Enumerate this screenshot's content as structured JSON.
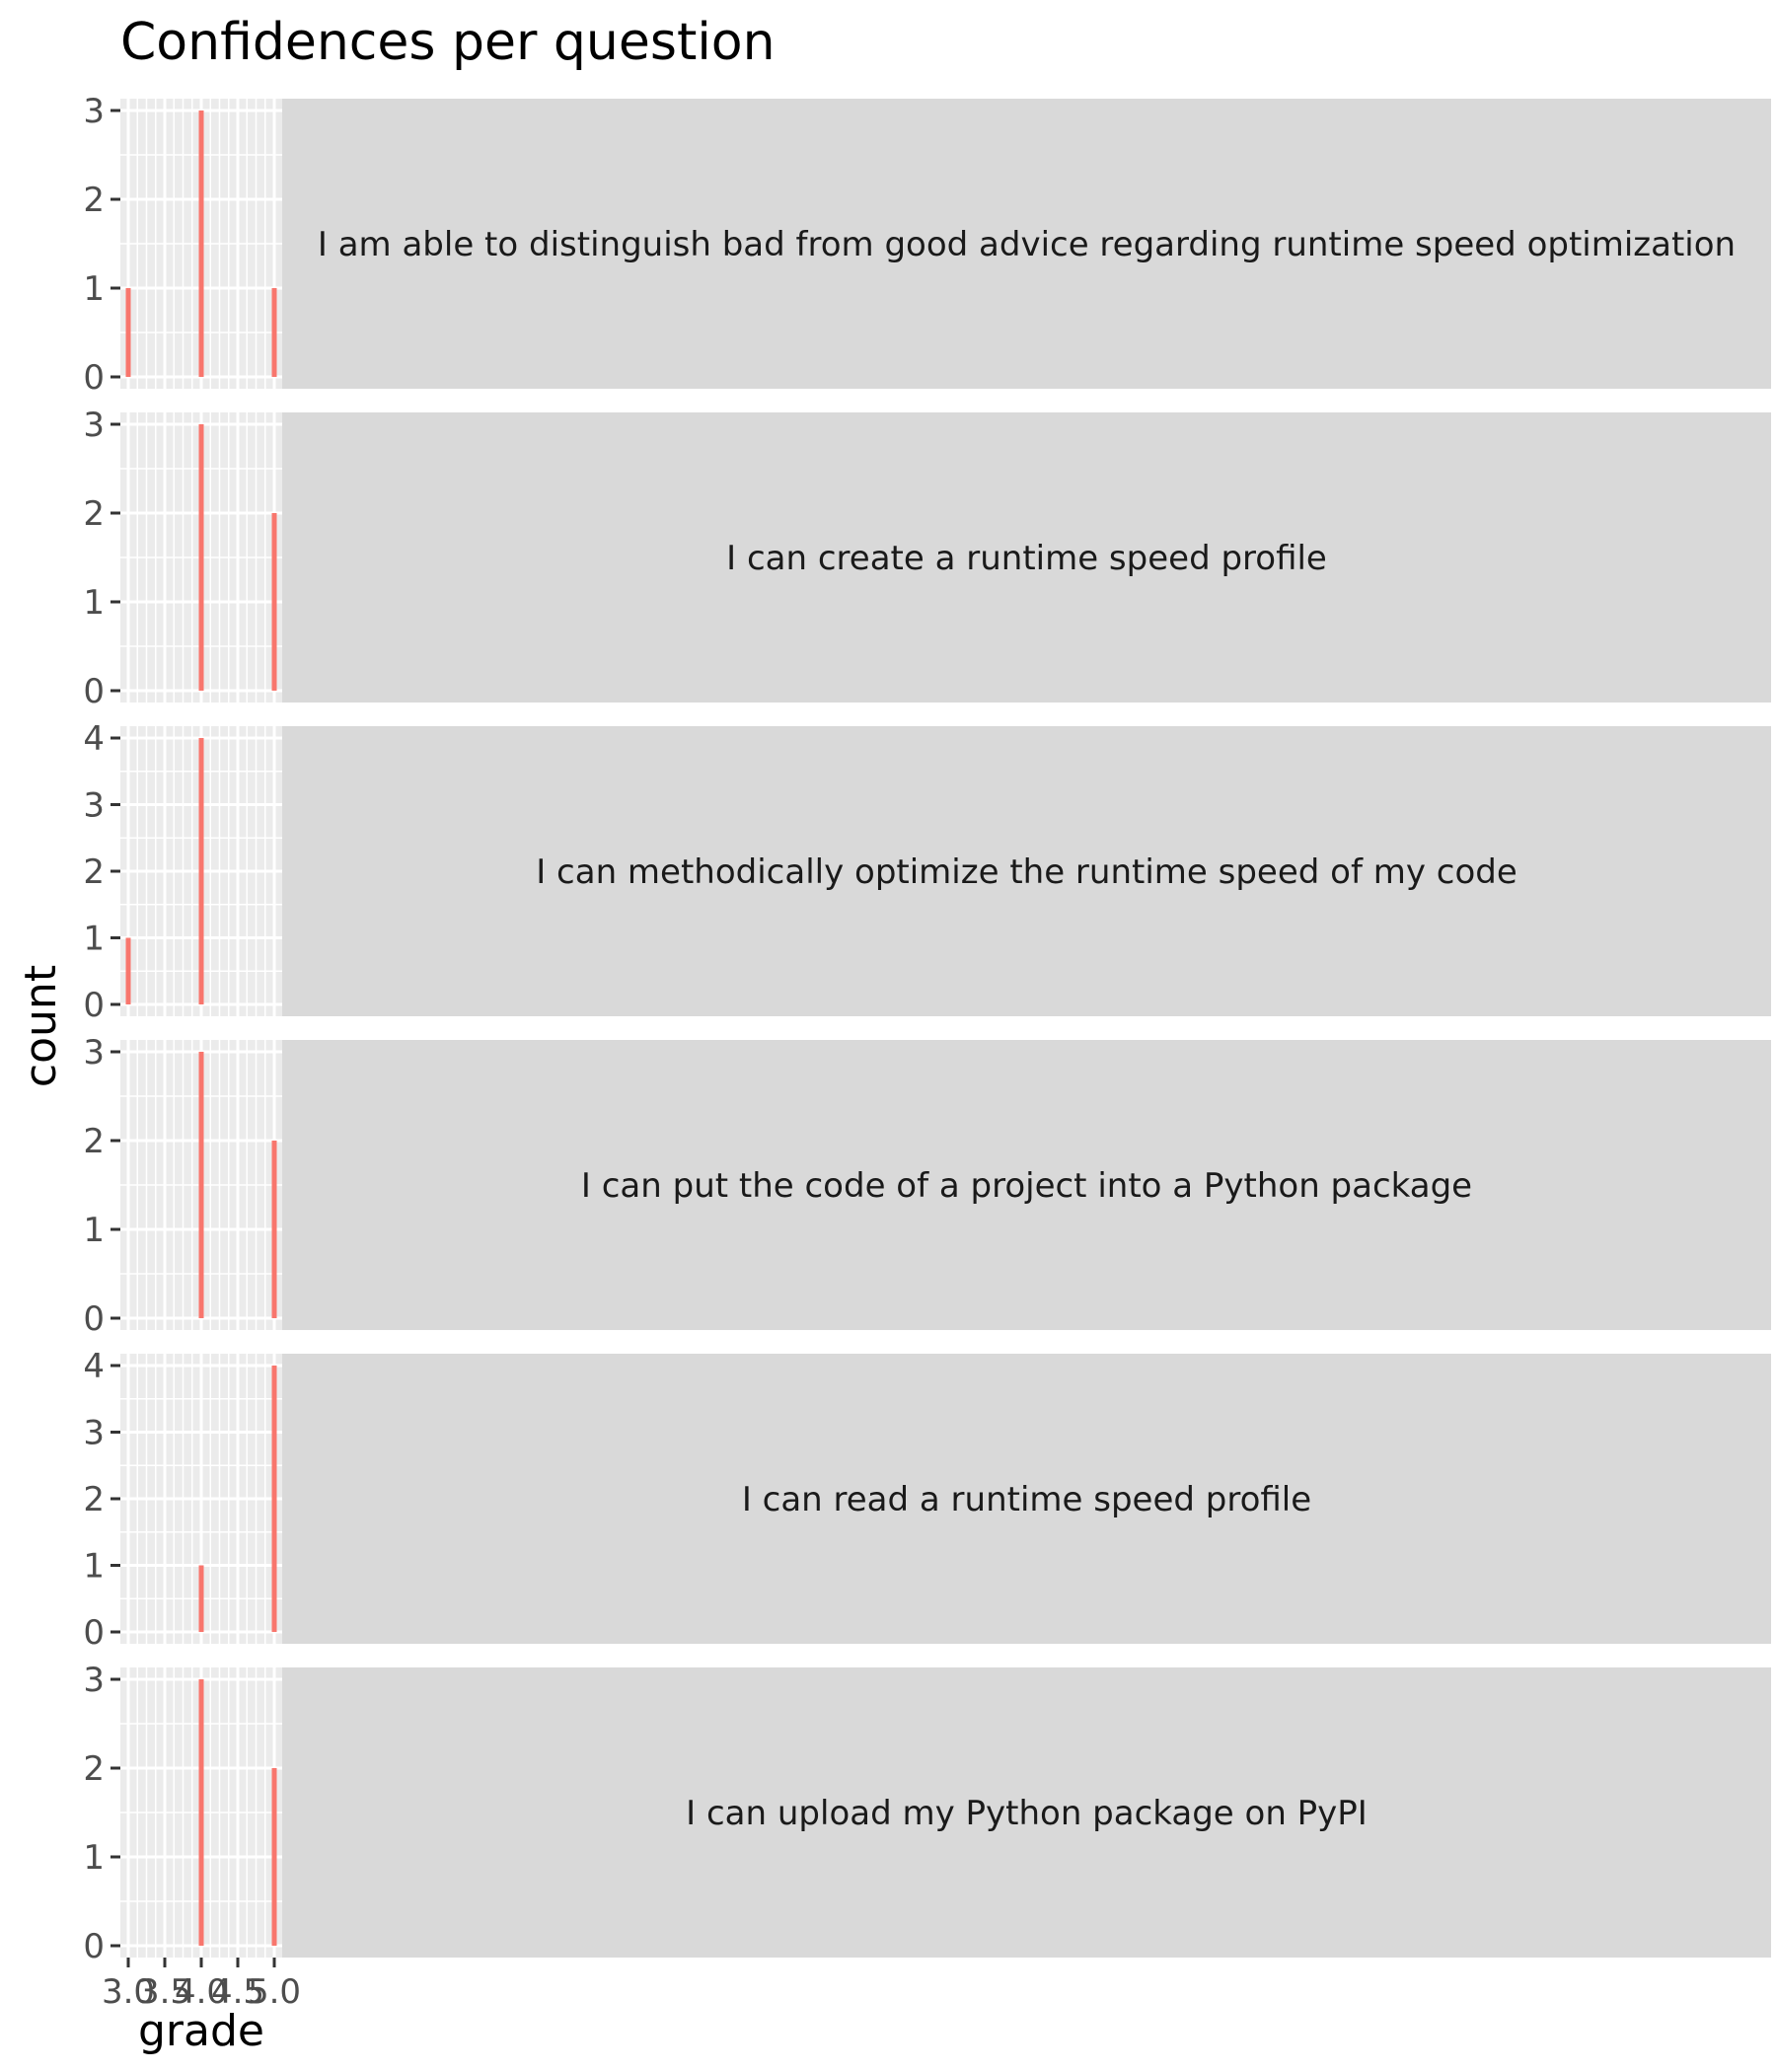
{
  "chart_data": {
    "type": "bar",
    "title": "Confidences per question",
    "xlabel": "grade",
    "ylabel": "count",
    "xlim": [
      3.0,
      5.0
    ],
    "x_ticks": [
      "3.0",
      "3.5",
      "4.0",
      "4.5",
      "5.0"
    ],
    "bar_color": "#f8766d",
    "panel_bg": "#ebebeb",
    "strip_bg": "#d9d9d9",
    "grid_color": "#ffffff",
    "facets": [
      {
        "label": "I am able to distinguish bad from good advice regarding runtime speed optimization",
        "ylim": [
          0,
          3
        ],
        "y_ticks": [
          "0",
          "1",
          "2",
          "3"
        ],
        "bars": [
          {
            "x": 3.0,
            "count": 1
          },
          {
            "x": 4.0,
            "count": 3
          },
          {
            "x": 5.0,
            "count": 1
          }
        ]
      },
      {
        "label": "I can create a runtime speed profile",
        "ylim": [
          0,
          3
        ],
        "y_ticks": [
          "0",
          "1",
          "2",
          "3"
        ],
        "bars": [
          {
            "x": 4.0,
            "count": 3
          },
          {
            "x": 5.0,
            "count": 2
          }
        ]
      },
      {
        "label": "I can methodically optimize the runtime speed of my code",
        "ylim": [
          0,
          4
        ],
        "y_ticks": [
          "0",
          "1",
          "2",
          "3",
          "4"
        ],
        "bars": [
          {
            "x": 3.0,
            "count": 1
          },
          {
            "x": 4.0,
            "count": 4
          }
        ]
      },
      {
        "label": "I can put the code of a project into a Python package",
        "ylim": [
          0,
          3
        ],
        "y_ticks": [
          "0",
          "1",
          "2",
          "3"
        ],
        "bars": [
          {
            "x": 4.0,
            "count": 3
          },
          {
            "x": 5.0,
            "count": 2
          }
        ]
      },
      {
        "label": "I can read a runtime speed profile",
        "ylim": [
          0,
          4
        ],
        "y_ticks": [
          "0",
          "1",
          "2",
          "3",
          "4"
        ],
        "bars": [
          {
            "x": 4.0,
            "count": 1
          },
          {
            "x": 5.0,
            "count": 4
          }
        ]
      },
      {
        "label": "I can upload my Python package on PyPI",
        "ylim": [
          0,
          3
        ],
        "y_ticks": [
          "0",
          "1",
          "2",
          "3"
        ],
        "bars": [
          {
            "x": 4.0,
            "count": 3
          },
          {
            "x": 5.0,
            "count": 2
          }
        ]
      }
    ]
  }
}
